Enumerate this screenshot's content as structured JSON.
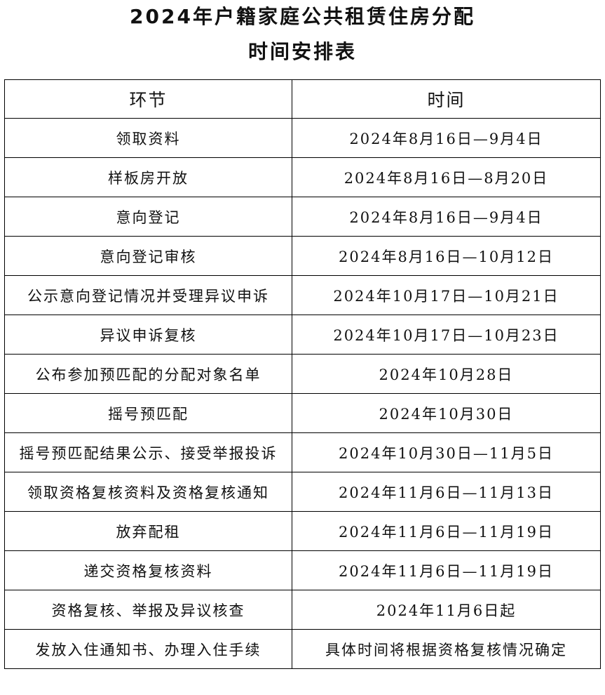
{
  "title": {
    "line1": "2024年户籍家庭公共租赁住房分配",
    "line2": "时间安排表"
  },
  "table": {
    "headers": [
      "环节",
      "时间"
    ],
    "rows": [
      [
        "领取资料",
        "2024年8月16日—9月4日"
      ],
      [
        "样板房开放",
        "2024年8月16日—8月20日"
      ],
      [
        "意向登记",
        "2024年8月16日—9月4日"
      ],
      [
        "意向登记审核",
        "2024年8月16日—10月12日"
      ],
      [
        "公示意向登记情况并受理异议申诉",
        "2024年10月17日—10月21日"
      ],
      [
        "异议申诉复核",
        "2024年10月17日—10月23日"
      ],
      [
        "公布参加预匹配的分配对象名单",
        "2024年10月28日"
      ],
      [
        "摇号预匹配",
        "2024年10月30日"
      ],
      [
        "摇号预匹配结果公示、接受举报投诉",
        "2024年10月30日—11月5日"
      ],
      [
        "领取资格复核资料及资格复核通知",
        "2024年11月6日—11月13日"
      ],
      [
        "放弃配租",
        "2024年11月6日—11月19日"
      ],
      [
        "递交资格复核资料",
        "2024年11月6日—11月19日"
      ],
      [
        "资格复核、举报及异议核查",
        "2024年11月6日起"
      ],
      [
        "发放入住通知书、办理入住手续",
        "具体时间将根据资格复核情况确定"
      ]
    ]
  }
}
